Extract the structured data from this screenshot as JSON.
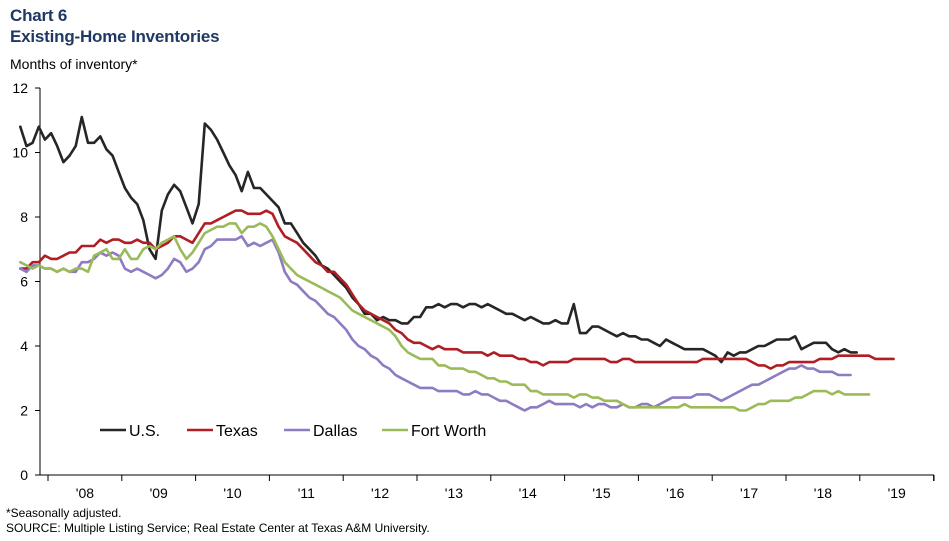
{
  "header": {
    "chart_number": "Chart 6",
    "title": "Existing-Home Inventories",
    "ylabel": "Months of inventory*"
  },
  "footer": {
    "note": "*Seasonally adjusted.",
    "source": "SOURCE: Multiple Listing Service; Real Estate Center at Texas A&M University."
  },
  "chart_data": {
    "type": "line",
    "title": "Existing-Home Inventories",
    "ylabel": "Months of inventory*",
    "xlabel": "",
    "x_ticks": [
      "'08",
      "'09",
      "'10",
      "'11",
      "'12",
      "'13",
      "'14",
      "'15",
      "'16",
      "'17",
      "'18",
      "'19"
    ],
    "y_ticks": [
      0,
      2,
      4,
      6,
      8,
      10,
      12
    ],
    "ylim": [
      0,
      12
    ],
    "x_start": "2007-08",
    "frequency": "monthly",
    "grid": false,
    "legend_position": "bottom-left",
    "series": [
      {
        "name": "U.S.",
        "color": "#262626",
        "values": [
          10.8,
          10.2,
          10.3,
          10.8,
          10.4,
          10.6,
          10.2,
          9.7,
          9.9,
          10.2,
          11.1,
          10.3,
          10.3,
          10.5,
          10.1,
          9.9,
          9.4,
          8.9,
          8.6,
          8.4,
          7.9,
          7.0,
          6.7,
          8.2,
          8.7,
          9.0,
          8.8,
          8.3,
          7.8,
          8.4,
          10.9,
          10.7,
          10.4,
          10.0,
          9.6,
          9.3,
          8.8,
          9.4,
          8.9,
          8.9,
          8.7,
          8.5,
          8.3,
          7.8,
          7.8,
          7.5,
          7.2,
          7.0,
          6.8,
          6.5,
          6.4,
          6.2,
          6.0,
          5.8,
          5.5,
          5.3,
          5.0,
          5.0,
          4.8,
          4.9,
          4.8,
          4.8,
          4.7,
          4.7,
          4.9,
          4.9,
          5.2,
          5.2,
          5.3,
          5.2,
          5.3,
          5.3,
          5.2,
          5.3,
          5.3,
          5.2,
          5.3,
          5.2,
          5.1,
          5.0,
          5.0,
          4.9,
          4.8,
          4.9,
          4.8,
          4.7,
          4.7,
          4.8,
          4.7,
          4.7,
          5.3,
          4.4,
          4.4,
          4.6,
          4.6,
          4.5,
          4.4,
          4.3,
          4.4,
          4.3,
          4.3,
          4.2,
          4.2,
          4.1,
          4.0,
          4.2,
          4.1,
          4.0,
          3.9,
          3.9,
          3.9,
          3.9,
          3.8,
          3.7,
          3.5,
          3.8,
          3.7,
          3.8,
          3.8,
          3.9,
          4.0,
          4.0,
          4.1,
          4.2,
          4.2,
          4.2,
          4.3,
          3.9,
          4.0,
          4.1,
          4.1,
          4.1,
          3.9,
          3.8,
          3.9,
          3.8,
          3.8
        ]
      },
      {
        "name": "Texas",
        "color": "#b01e23",
        "values": [
          6.4,
          6.4,
          6.6,
          6.6,
          6.8,
          6.7,
          6.7,
          6.8,
          6.9,
          6.9,
          7.1,
          7.1,
          7.1,
          7.3,
          7.2,
          7.3,
          7.3,
          7.2,
          7.2,
          7.3,
          7.2,
          7.2,
          7.0,
          7.1,
          7.2,
          7.4,
          7.4,
          7.3,
          7.2,
          7.5,
          7.8,
          7.8,
          7.9,
          8.0,
          8.1,
          8.2,
          8.2,
          8.1,
          8.1,
          8.1,
          8.2,
          8.1,
          7.7,
          7.4,
          7.3,
          7.2,
          7.0,
          6.8,
          6.6,
          6.5,
          6.3,
          6.3,
          6.1,
          5.9,
          5.6,
          5.3,
          5.1,
          5.0,
          4.9,
          4.8,
          4.7,
          4.5,
          4.4,
          4.2,
          4.1,
          4.1,
          4.0,
          3.9,
          4.0,
          3.9,
          3.9,
          3.9,
          3.8,
          3.8,
          3.8,
          3.8,
          3.7,
          3.8,
          3.7,
          3.7,
          3.7,
          3.6,
          3.6,
          3.5,
          3.5,
          3.4,
          3.5,
          3.5,
          3.5,
          3.5,
          3.6,
          3.6,
          3.6,
          3.6,
          3.6,
          3.6,
          3.5,
          3.5,
          3.6,
          3.6,
          3.5,
          3.5,
          3.5,
          3.5,
          3.5,
          3.5,
          3.5,
          3.5,
          3.5,
          3.5,
          3.5,
          3.6,
          3.6,
          3.6,
          3.6,
          3.6,
          3.6,
          3.6,
          3.6,
          3.5,
          3.4,
          3.4,
          3.3,
          3.4,
          3.4,
          3.5,
          3.5,
          3.5,
          3.5,
          3.5,
          3.6,
          3.6,
          3.6,
          3.7,
          3.7,
          3.7,
          3.7,
          3.7,
          3.7,
          3.6,
          3.6,
          3.6,
          3.6
        ]
      },
      {
        "name": "Dallas",
        "color": "#8e7cc3",
        "values": [
          6.4,
          6.3,
          6.5,
          6.5,
          6.4,
          6.4,
          6.3,
          6.4,
          6.3,
          6.3,
          6.6,
          6.6,
          6.7,
          6.9,
          6.8,
          6.9,
          6.8,
          6.4,
          6.3,
          6.4,
          6.3,
          6.2,
          6.1,
          6.2,
          6.4,
          6.7,
          6.6,
          6.3,
          6.4,
          6.6,
          7.0,
          7.1,
          7.3,
          7.3,
          7.3,
          7.3,
          7.4,
          7.1,
          7.2,
          7.1,
          7.2,
          7.3,
          6.9,
          6.3,
          6.0,
          5.9,
          5.7,
          5.5,
          5.4,
          5.2,
          5.0,
          4.9,
          4.7,
          4.5,
          4.2,
          4.0,
          3.9,
          3.7,
          3.6,
          3.4,
          3.3,
          3.1,
          3.0,
          2.9,
          2.8,
          2.7,
          2.7,
          2.7,
          2.6,
          2.6,
          2.6,
          2.6,
          2.5,
          2.5,
          2.6,
          2.5,
          2.5,
          2.4,
          2.3,
          2.3,
          2.2,
          2.1,
          2.0,
          2.1,
          2.1,
          2.2,
          2.3,
          2.2,
          2.2,
          2.2,
          2.2,
          2.1,
          2.2,
          2.1,
          2.2,
          2.2,
          2.1,
          2.1,
          2.2,
          2.1,
          2.1,
          2.2,
          2.2,
          2.1,
          2.2,
          2.3,
          2.4,
          2.4,
          2.4,
          2.4,
          2.5,
          2.5,
          2.5,
          2.4,
          2.3,
          2.4,
          2.5,
          2.6,
          2.7,
          2.8,
          2.8,
          2.9,
          3.0,
          3.1,
          3.2,
          3.3,
          3.3,
          3.4,
          3.3,
          3.3,
          3.2,
          3.2,
          3.2,
          3.1,
          3.1,
          3.1
        ]
      },
      {
        "name": "Fort Worth",
        "color": "#9bbb59",
        "values": [
          6.6,
          6.5,
          6.4,
          6.5,
          6.4,
          6.4,
          6.3,
          6.4,
          6.3,
          6.4,
          6.4,
          6.3,
          6.8,
          6.9,
          7.0,
          6.7,
          6.7,
          7.0,
          6.7,
          6.7,
          7.0,
          7.1,
          7.0,
          7.2,
          7.3,
          7.4,
          7.0,
          6.7,
          6.9,
          7.2,
          7.5,
          7.6,
          7.7,
          7.7,
          7.8,
          7.8,
          7.5,
          7.7,
          7.7,
          7.8,
          7.7,
          7.4,
          7.0,
          6.6,
          6.4,
          6.2,
          6.1,
          6.0,
          5.9,
          5.8,
          5.7,
          5.6,
          5.5,
          5.3,
          5.1,
          5.0,
          4.9,
          4.8,
          4.7,
          4.6,
          4.5,
          4.3,
          4.0,
          3.8,
          3.7,
          3.6,
          3.6,
          3.6,
          3.4,
          3.4,
          3.3,
          3.3,
          3.3,
          3.2,
          3.2,
          3.1,
          3.0,
          3.0,
          2.9,
          2.9,
          2.8,
          2.8,
          2.8,
          2.6,
          2.6,
          2.5,
          2.5,
          2.5,
          2.5,
          2.5,
          2.4,
          2.5,
          2.5,
          2.4,
          2.4,
          2.3,
          2.3,
          2.3,
          2.2,
          2.1,
          2.1,
          2.1,
          2.1,
          2.1,
          2.1,
          2.1,
          2.1,
          2.1,
          2.2,
          2.1,
          2.1,
          2.1,
          2.1,
          2.1,
          2.1,
          2.1,
          2.1,
          2.0,
          2.0,
          2.1,
          2.2,
          2.2,
          2.3,
          2.3,
          2.3,
          2.3,
          2.4,
          2.4,
          2.5,
          2.6,
          2.6,
          2.6,
          2.5,
          2.6,
          2.5,
          2.5,
          2.5,
          2.5,
          2.5
        ]
      }
    ]
  }
}
